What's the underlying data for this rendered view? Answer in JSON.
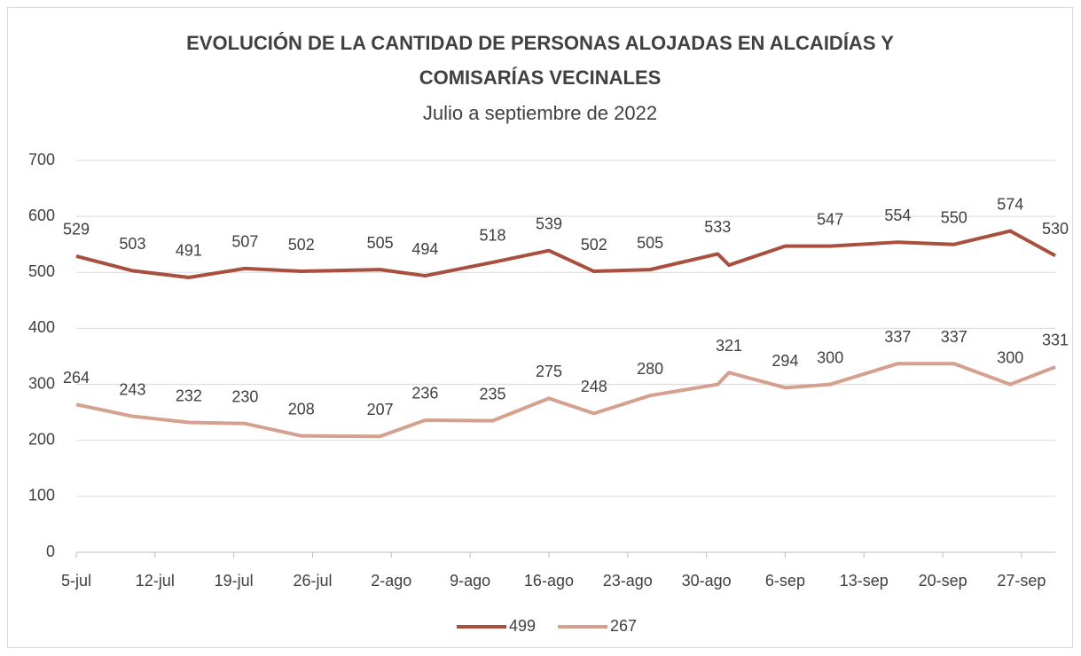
{
  "chart_data": {
    "type": "line",
    "title": "EVOLUCIÓN DE LA CANTIDAD DE PERSONAS ALOJADAS EN ALCAIDÍAS Y COMISARÍAS VECINALES",
    "subtitle": "Julio a septiembre de 2022",
    "x": [
      "07-05",
      "07-10",
      "07-15",
      "07-20",
      "07-25",
      "08-01",
      "08-05",
      "08-11",
      "08-16",
      "08-20",
      "08-25",
      "08-31",
      "09-01",
      "09-06",
      "09-10",
      "09-16",
      "09-21",
      "09-26",
      "09-30"
    ],
    "xlim": [
      "07-05",
      "09-30"
    ],
    "xticks": [
      {
        "value": "07-05",
        "label": "5-jul"
      },
      {
        "value": "07-12",
        "label": "12-jul"
      },
      {
        "value": "07-19",
        "label": "19-jul"
      },
      {
        "value": "07-26",
        "label": "26-jul"
      },
      {
        "value": "08-02",
        "label": "2-ago"
      },
      {
        "value": "08-09",
        "label": "9-ago"
      },
      {
        "value": "08-16",
        "label": "16-ago"
      },
      {
        "value": "08-23",
        "label": "23-ago"
      },
      {
        "value": "08-30",
        "label": "30-ago"
      },
      {
        "value": "09-06",
        "label": "6-sep"
      },
      {
        "value": "09-13",
        "label": "13-sep"
      },
      {
        "value": "09-20",
        "label": "20-sep"
      },
      {
        "value": "09-27",
        "label": "27-sep"
      }
    ],
    "ylim": [
      0,
      700
    ],
    "yticks": [
      0,
      100,
      200,
      300,
      400,
      500,
      600,
      700
    ],
    "grid": true,
    "legend": "bottom",
    "series": [
      {
        "name": "499",
        "color": "#a84f3e",
        "values": [
          529,
          503,
          491,
          507,
          502,
          505,
          494,
          518,
          539,
          502,
          505,
          533,
          513,
          547,
          547,
          554,
          550,
          574,
          530
        ],
        "value_labels": [
          "529",
          "503",
          "491",
          "507",
          "502",
          "505",
          "494",
          "518",
          "539",
          "502",
          "505",
          "533",
          null,
          null,
          "547",
          "554",
          "550",
          "574",
          "530"
        ]
      },
      {
        "name": "267",
        "color": "#d5a08e",
        "values": [
          264,
          243,
          232,
          230,
          208,
          207,
          236,
          235,
          275,
          248,
          280,
          300,
          321,
          294,
          300,
          337,
          337,
          300,
          331
        ],
        "value_labels": [
          "264",
          "243",
          "232",
          "230",
          "208",
          "207",
          "236",
          "235",
          "275",
          "248",
          "280",
          null,
          "321",
          "294",
          "300",
          "337",
          "337",
          "300",
          "331"
        ]
      }
    ]
  }
}
